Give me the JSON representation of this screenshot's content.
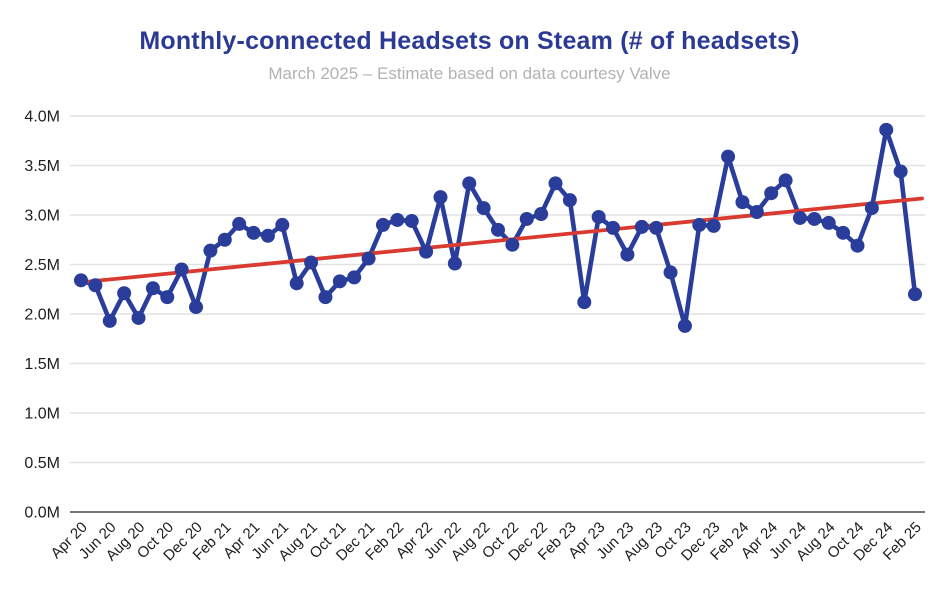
{
  "header": {
    "title": "Monthly-connected Headsets on Steam (# of headsets)",
    "subtitle": "March 2025 – Estimate based on data courtesy Valve"
  },
  "chart_data": {
    "type": "line",
    "title": "Monthly-connected Headsets on Steam (# of headsets)",
    "subtitle": "March 2025 – Estimate based on data courtesy Valve",
    "xlabel": "",
    "ylabel": "",
    "units": "millions of headsets",
    "grid": true,
    "legend_position": "none",
    "ylim": [
      0,
      4
    ],
    "yticks": [
      "0.0M",
      "0.5M",
      "1.0M",
      "1.5M",
      "2.0M",
      "2.5M",
      "3.0M",
      "3.5M",
      "4.0M"
    ],
    "x_tick_step": 2,
    "x": [
      "Apr 20",
      "May 20",
      "Jun 20",
      "Jul 20",
      "Aug 20",
      "Sep 20",
      "Oct 20",
      "Nov 20",
      "Dec 20",
      "Jan 21",
      "Feb 21",
      "Mar 21",
      "Apr 21",
      "May 21",
      "Jun 21",
      "Jul 21",
      "Aug 21",
      "Sep 21",
      "Oct 21",
      "Nov 21",
      "Dec 21",
      "Jan 22",
      "Feb 22",
      "Mar 22",
      "Apr 22",
      "May 22",
      "Jun 22",
      "Jul 22",
      "Aug 22",
      "Sep 22",
      "Oct 22",
      "Nov 22",
      "Dec 22",
      "Jan 23",
      "Feb 23",
      "Mar 23",
      "Apr 23",
      "May 23",
      "Jun 23",
      "Jul 23",
      "Aug 23",
      "Sep 23",
      "Oct 23",
      "Nov 23",
      "Dec 23",
      "Jan 24",
      "Feb 24",
      "Mar 24",
      "Apr 24",
      "May 24",
      "Jun 24",
      "Jul 24",
      "Aug 24",
      "Sep 24",
      "Oct 24",
      "Nov 24",
      "Dec 24",
      "Jan 25",
      "Feb 25"
    ],
    "series": [
      {
        "name": "Monthly-connected headsets",
        "color": "#2b3d9b",
        "marker": "circle",
        "values": [
          2.34,
          2.29,
          1.93,
          2.21,
          1.96,
          2.26,
          2.17,
          2.45,
          2.07,
          2.64,
          2.75,
          2.91,
          2.82,
          2.79,
          2.9,
          2.31,
          2.52,
          2.17,
          2.33,
          2.37,
          2.56,
          2.9,
          2.95,
          2.94,
          2.63,
          3.18,
          2.51,
          3.32,
          3.07,
          2.85,
          2.7,
          2.96,
          3.01,
          3.32,
          3.15,
          2.12,
          2.98,
          2.87,
          2.6,
          2.88,
          2.87,
          2.42,
          1.88,
          2.9,
          2.89,
          3.59,
          3.13,
          3.03,
          3.22,
          3.35,
          2.97,
          2.96,
          2.92,
          2.82,
          2.69,
          3.07,
          3.86,
          3.44,
          2.2
        ]
      }
    ],
    "trendline": {
      "name": "linear-trend",
      "color": "#d93b30",
      "x_span": [
        "Apr 20",
        "Feb 25"
      ],
      "value_start": 2.32,
      "value_end": 3.16
    },
    "axis_colors": {
      "tick_label": "#1e1e1e",
      "gridline": "#e2e2e2",
      "baseline": "#757575"
    }
  }
}
